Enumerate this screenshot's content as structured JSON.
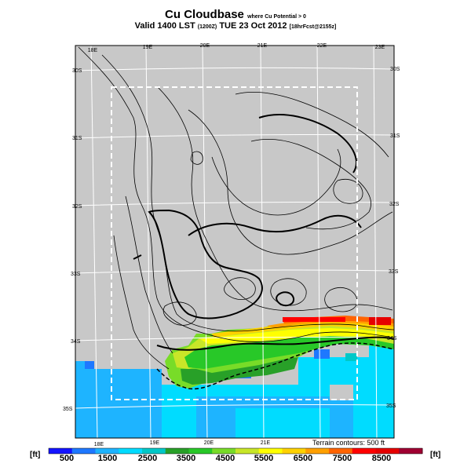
{
  "title": {
    "main": "Cu Cloudbase",
    "suffix": "where Cu Potential > 0"
  },
  "subtitle": {
    "valid": "Valid 1400 LST",
    "utc": "(1200Z)",
    "date": "TUE 23 Oct 2012",
    "forecast": "[18hrFcst@2155z]"
  },
  "map": {
    "background_color": "#c8c8c8",
    "lon_labels_top": [
      "18E",
      "19E",
      "20E",
      "21E",
      "22E",
      "23E"
    ],
    "lon_labels_bottom": [
      "18E",
      "19E",
      "20E",
      "21E"
    ],
    "lat_labels_left": [
      "30S",
      "31S",
      "32S",
      "33S",
      "34S",
      "35S"
    ],
    "lat_labels_right": [
      "30S",
      "31S",
      "32S",
      "33S",
      "34S",
      "35S"
    ],
    "terrain_note": "Terrain contours: 500 ft"
  },
  "colorbar": {
    "unit": "[ft]",
    "labels": [
      "500",
      "1500",
      "2500",
      "3500",
      "4500",
      "5500",
      "6500",
      "7500",
      "8500"
    ],
    "colors": [
      "#1414ff",
      "#1e78ff",
      "#1eb4ff",
      "#00dcff",
      "#00c8c8",
      "#28a028",
      "#28c828",
      "#78dc28",
      "#c8e628",
      "#ffff00",
      "#ffd200",
      "#ffa000",
      "#ff6400",
      "#ff0000",
      "#e60000",
      "#a00032"
    ]
  }
}
